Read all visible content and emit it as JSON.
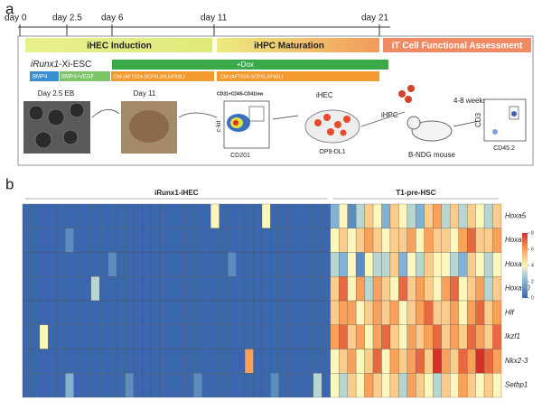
{
  "panel_a": {
    "label": "a",
    "days": [
      "day 0",
      "day 2.5",
      "day 6",
      "day 11",
      "day 21"
    ],
    "stages": [
      "iHEC Induction",
      "iHPC Maturation",
      "iT Cell Functional Assessment"
    ],
    "cell_line_gene": "iRunx1",
    "cell_line_suffix": "-Xi-ESC",
    "dox": "+Dox",
    "media": [
      "BMP4",
      "BMP4+VEGF",
      "CM-(AFT024-SCF/IL3/IL6/Flt3L)",
      "CM-(AFT024-SCF/IL3/Flt3L)"
    ],
    "eb_label": "Day 2.5 EB",
    "day11_label": "Day 11",
    "gate": "CD31+CD45-CD41low",
    "flow1_y": "c-kit",
    "flow1_x": "CD201",
    "ihec": "iHEC",
    "op9": "OP9-DL1",
    "ihpc": "iHPC",
    "weeks": "4-8 weeks",
    "mouse": "B-NDG mouse",
    "flow2_y": "CD3",
    "flow2_x": "CD45.2"
  },
  "chart_data": {
    "type": "heatmap",
    "label": "b",
    "row_labels": [
      "Hoxa5",
      "Hoxa7",
      "Hoxa9",
      "Hoxa10",
      "Hlf",
      "Ikzf1",
      "Nkx2-3",
      "Setbp1"
    ],
    "zlim": [
      0,
      8
    ],
    "zticks": [
      0,
      2,
      4,
      6,
      8
    ],
    "groups": [
      {
        "label": "iRunx1-iHEC",
        "rows": [
          [
            0,
            0,
            0,
            0,
            0,
            0,
            0,
            0,
            0,
            0,
            0,
            0,
            0,
            0,
            0,
            0,
            0,
            0,
            0,
            0,
            0,
            0,
            4,
            0,
            0,
            0,
            0,
            0,
            4,
            0,
            0,
            0,
            0,
            0,
            0,
            0
          ],
          [
            0,
            0,
            0,
            0,
            0,
            1,
            0,
            0,
            0,
            0,
            0,
            0,
            0,
            0,
            0,
            0,
            0,
            0,
            0,
            0,
            0,
            0,
            0,
            0,
            0,
            0,
            0,
            0,
            0,
            0,
            0,
            0,
            0,
            0,
            0,
            0
          ],
          [
            0,
            0,
            0,
            0,
            0,
            0,
            0,
            0,
            0,
            0,
            1,
            0,
            0,
            0,
            0,
            0,
            0,
            0,
            0,
            0,
            0,
            0,
            0,
            0,
            1,
            0,
            0,
            0,
            0,
            0,
            0,
            0,
            0,
            0,
            0,
            0
          ],
          [
            0,
            0,
            0,
            0,
            0,
            0,
            0,
            0,
            3,
            0,
            0,
            0,
            0,
            0,
            0,
            0,
            0,
            0,
            0,
            0,
            0,
            0,
            0,
            0,
            0,
            0,
            0,
            0,
            0,
            0,
            0,
            0,
            0,
            0,
            0,
            0
          ],
          [
            0,
            0,
            0,
            0,
            0,
            0,
            0,
            0,
            0,
            0,
            0,
            0,
            0,
            0,
            0,
            0,
            0,
            0,
            0,
            0,
            0,
            0,
            0,
            0,
            0,
            0,
            0,
            0,
            0,
            0,
            0,
            0,
            0,
            0,
            0,
            0
          ],
          [
            0,
            0,
            4,
            0,
            0,
            0,
            0,
            0,
            0,
            0,
            0,
            0,
            0,
            0,
            0,
            0,
            0,
            0,
            0,
            0,
            0,
            0,
            0,
            0,
            0,
            0,
            0,
            0,
            0,
            0,
            0,
            0,
            0,
            0,
            0,
            0
          ],
          [
            0,
            0,
            0,
            0,
            0,
            0,
            0,
            0,
            0,
            0,
            0,
            0,
            0,
            0,
            0,
            0,
            0,
            0,
            0,
            0,
            0,
            0,
            0,
            0,
            0,
            0,
            6,
            0,
            0,
            0,
            0,
            0,
            0,
            0,
            0,
            0
          ],
          [
            0,
            0,
            0,
            0,
            0,
            2,
            0,
            0,
            0,
            0,
            0,
            0,
            1,
            0,
            0,
            0,
            0,
            0,
            0,
            0,
            1,
            0,
            0,
            0,
            0,
            0,
            0,
            0,
            0,
            1,
            0,
            0,
            0,
            0,
            3,
            0
          ]
        ]
      },
      {
        "label": "T1-pre-HSC",
        "rows": [
          [
            2,
            4,
            1,
            3,
            5,
            4,
            2,
            5,
            4,
            3,
            2,
            5,
            6,
            3,
            5,
            3,
            5,
            4,
            3,
            5
          ],
          [
            4,
            5,
            4,
            5,
            6,
            5,
            4,
            5,
            5,
            6,
            4,
            6,
            5,
            5,
            4,
            6,
            7,
            5,
            5,
            6
          ],
          [
            3,
            2,
            4,
            1,
            4,
            3,
            3,
            5,
            2,
            4,
            3,
            5,
            4,
            4,
            3,
            2,
            5,
            4,
            3,
            4
          ],
          [
            5,
            7,
            4,
            6,
            3,
            6,
            5,
            4,
            7,
            5,
            6,
            5,
            4,
            6,
            7,
            4,
            5,
            6,
            3,
            5
          ],
          [
            5,
            6,
            6,
            4,
            5,
            6,
            5,
            6,
            4,
            5,
            6,
            7,
            5,
            5,
            6,
            4,
            6,
            7,
            5,
            6
          ],
          [
            6,
            7,
            5,
            6,
            4,
            6,
            7,
            5,
            4,
            6,
            5,
            6,
            7,
            5,
            6,
            5,
            7,
            6,
            5,
            7
          ],
          [
            4,
            5,
            6,
            4,
            5,
            7,
            4,
            6,
            5,
            6,
            7,
            5,
            8,
            6,
            5,
            7,
            6,
            8,
            7,
            6
          ],
          [
            4,
            3,
            5,
            4,
            6,
            5,
            4,
            5,
            3,
            6,
            5,
            4,
            3,
            5,
            4,
            6,
            5,
            4,
            5,
            4
          ]
        ]
      }
    ]
  }
}
